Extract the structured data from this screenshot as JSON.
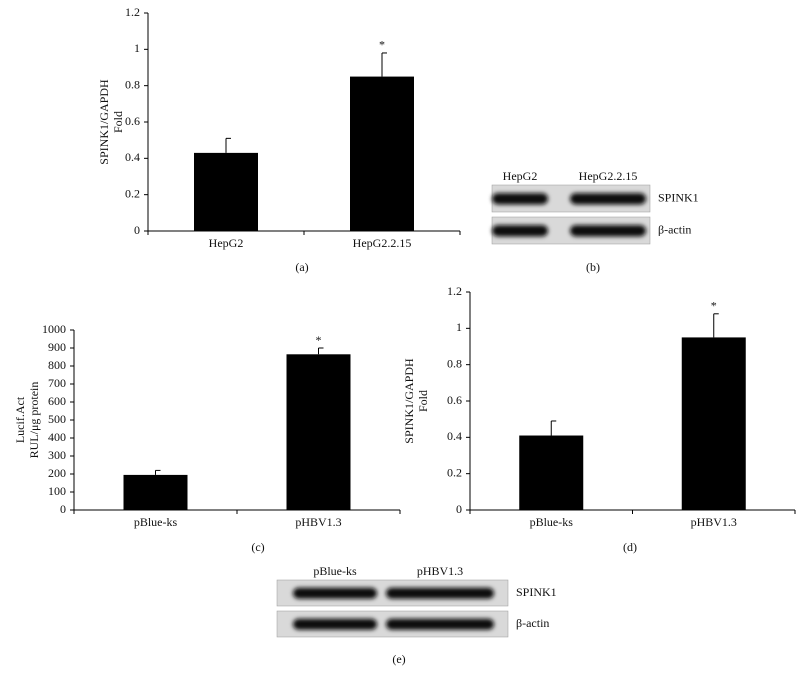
{
  "chart_data": [
    {
      "type": "bar",
      "label": "(a)",
      "ylabel": [
        "SPINK1/GAPDH",
        "Fold"
      ],
      "categories": [
        "HepG2",
        "HepG2.2.15"
      ],
      "values": [
        0.43,
        0.85
      ],
      "errors": [
        0.08,
        0.13
      ],
      "color": "#000000",
      "ylim": [
        0,
        1.2
      ],
      "yticks": [
        0,
        0.2,
        0.4,
        0.6,
        0.8,
        1,
        1.2
      ],
      "annotations": [
        {
          "category": "HepG2.2.15",
          "text": "*"
        }
      ]
    },
    {
      "type": "bar",
      "label": "(c)",
      "ylabel": [
        "Lucif.Act",
        "RUL/μg protein"
      ],
      "categories": [
        "pBlue-ks",
        "pHBV1.3"
      ],
      "values": [
        195,
        865
      ],
      "errors": [
        25,
        35
      ],
      "color": "#000000",
      "ylim": [
        0,
        1000
      ],
      "yticks": [
        0,
        100,
        200,
        300,
        400,
        500,
        600,
        700,
        800,
        900,
        1000
      ],
      "annotations": [
        {
          "category": "pHBV1.3",
          "text": "*"
        }
      ]
    },
    {
      "type": "bar",
      "label": "(d)",
      "ylabel": [
        "SPINK1/GAPDH",
        "Fold"
      ],
      "categories": [
        "pBlue-ks",
        "pHBV1.3"
      ],
      "values": [
        0.41,
        0.95
      ],
      "errors": [
        0.08,
        0.13
      ],
      "color": "#000000",
      "ylim": [
        0,
        1.2
      ],
      "yticks": [
        0,
        0.2,
        0.4,
        0.6,
        0.8,
        1,
        1.2
      ],
      "annotations": [
        {
          "category": "pHBV1.3",
          "text": "*"
        }
      ]
    }
  ],
  "blots": [
    {
      "label": "(b)",
      "columns": [
        "HepG2",
        "HepG2.2.15"
      ],
      "rows": [
        "SPINK1",
        "β-actin"
      ]
    },
    {
      "label": "(e)",
      "columns": [
        "pBlue-ks",
        "pHBV1.3"
      ],
      "rows": [
        "SPINK1",
        "β-actin"
      ]
    }
  ]
}
